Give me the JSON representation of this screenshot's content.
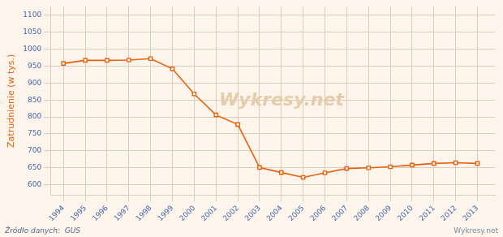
{
  "chart_data": {
    "type": "line",
    "ylabel": "Zatrudnienie (w tys.)",
    "annotations": [
      "Wykresy.net",
      "Źródło danych:  GUS",
      "Wykresy.net"
    ],
    "x": [
      1994,
      1995,
      1996,
      1997,
      1998,
      1999,
      2000,
      2001,
      2002,
      2003,
      2004,
      2005,
      2006,
      2007,
      2008,
      2009,
      2010,
      2011,
      2012,
      2013
    ],
    "values": [
      958,
      967,
      967,
      968,
      972,
      942,
      868,
      806,
      778,
      651,
      636,
      622,
      635,
      648,
      650,
      653,
      658,
      663,
      665,
      663
    ],
    "color": "#e8600a",
    "marker": "square",
    "xlim": [
      1993.4,
      2013.8
    ],
    "xticks": [
      1994,
      1995,
      1996,
      1997,
      1998,
      1999,
      2000,
      2001,
      2002,
      2003,
      2004,
      2005,
      2006,
      2007,
      2008,
      2009,
      2010,
      2011,
      2012,
      2013
    ],
    "ylim": [
      570,
      1125
    ],
    "yticks": [
      600,
      650,
      700,
      750,
      800,
      850,
      900,
      950,
      1000,
      1050,
      1100
    ],
    "grid": true
  }
}
